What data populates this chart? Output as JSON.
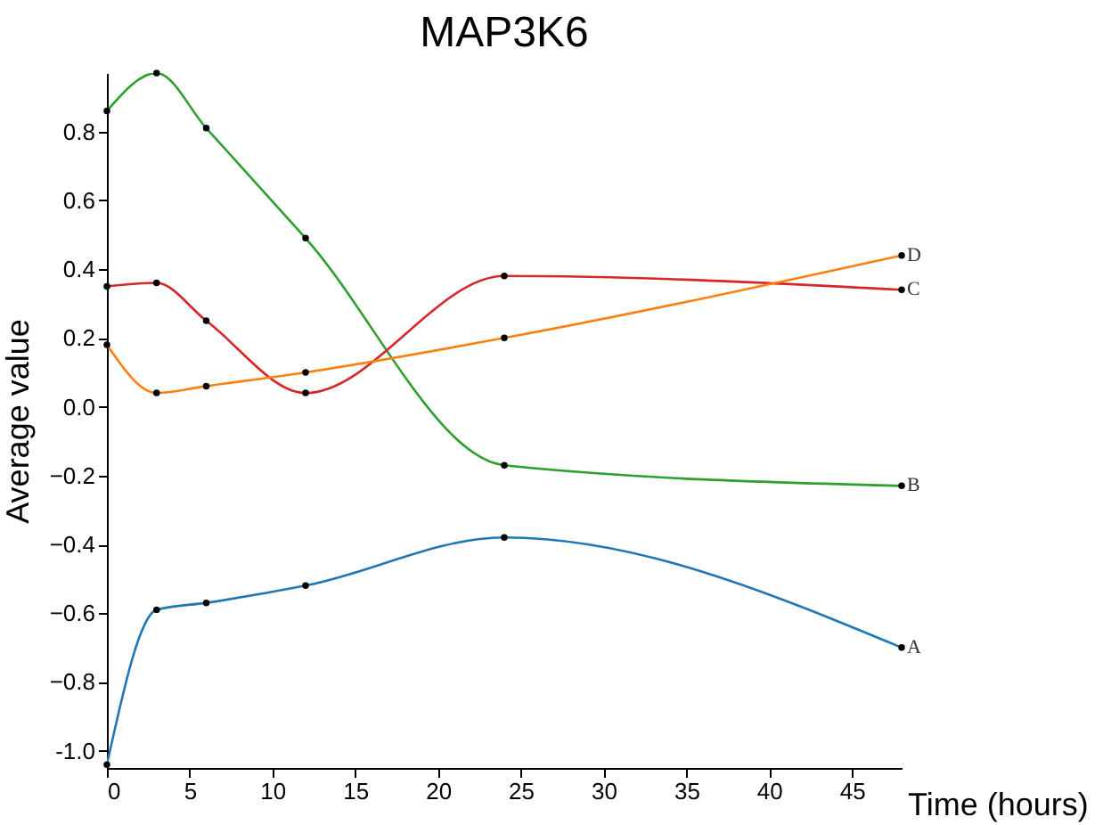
{
  "chart_data": {
    "type": "line",
    "title": "MAP3K6",
    "xlabel": "Time (hours)",
    "ylabel": "Average value",
    "x": [
      0,
      3,
      6,
      12,
      24,
      48
    ],
    "series": [
      {
        "name": "A",
        "color": "#1f77b4",
        "values": [
          -1.04,
          -0.59,
          -0.57,
          -0.52,
          -0.38,
          -0.7
        ]
      },
      {
        "name": "B",
        "color": "#2ca02c",
        "values": [
          0.86,
          0.97,
          0.81,
          0.49,
          -0.17,
          -0.23
        ]
      },
      {
        "name": "C",
        "color": "#d62728",
        "values": [
          0.35,
          0.36,
          0.25,
          0.04,
          0.38,
          0.34
        ]
      },
      {
        "name": "D",
        "color": "#ff7f0e",
        "values": [
          0.18,
          0.04,
          0.06,
          0.1,
          0.2,
          0.44
        ]
      }
    ],
    "xlim": [
      0,
      48
    ],
    "xticks": [
      0,
      5,
      10,
      15,
      20,
      25,
      30,
      35,
      40,
      45
    ],
    "ylim": [
      -1.05,
      0.97
    ],
    "yticks": [
      {
        "value": -1,
        "label": "-1.0"
      },
      -0.8,
      -0.6,
      -0.4,
      -0.2,
      {
        "value": 0,
        "label": "0.0"
      },
      0.2,
      0.4,
      0.6,
      0.8
    ],
    "grid": false,
    "legend": false,
    "marker": "circle",
    "line_style": "solid"
  }
}
